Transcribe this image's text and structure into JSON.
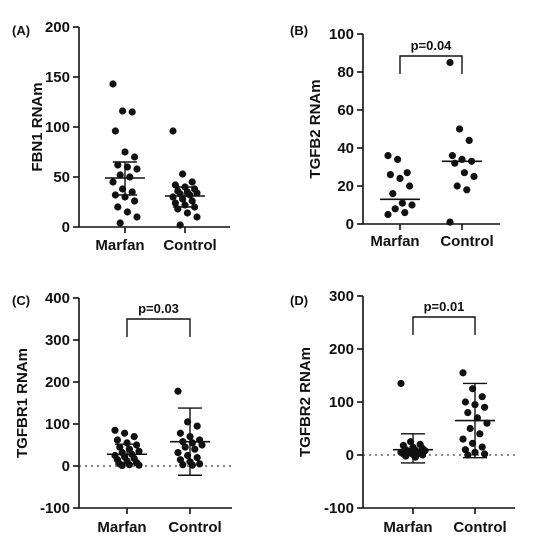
{
  "chart_data": [
    {
      "panel": "(A)",
      "type": "scatter",
      "ylabel": "FBN1  RNAm",
      "ylim": [
        0,
        200
      ],
      "yticks": [
        "0",
        "50",
        "100",
        "150",
        "200"
      ],
      "zero_line": false,
      "categories": [
        "Marfan",
        "Control"
      ],
      "series": [
        {
          "category": "Marfan",
          "mean": 49,
          "sd_low": 32,
          "sd_high": 65,
          "values": [
            143,
            116,
            115,
            96,
            75,
            70,
            62,
            60,
            58,
            52,
            50,
            45,
            38,
            35,
            32,
            30,
            26,
            20,
            15,
            10,
            4
          ]
        },
        {
          "category": "Control",
          "mean": 31,
          "sd_low": 20,
          "sd_high": 40,
          "values": [
            96,
            53,
            45,
            42,
            40,
            38,
            36,
            35,
            34,
            33,
            32,
            30,
            28,
            26,
            24,
            22,
            20,
            18,
            14,
            10,
            2
          ]
        }
      ],
      "significance": null
    },
    {
      "panel": "(B)",
      "type": "scatter",
      "ylabel": "TGFB2 RNAm",
      "ylim": [
        0,
        100
      ],
      "yticks": [
        "0",
        "20",
        "40",
        "60",
        "80",
        "100"
      ],
      "zero_line": false,
      "categories": [
        "Marfan",
        "Control"
      ],
      "series": [
        {
          "category": "Marfan",
          "mean": 13,
          "sd_low": 13,
          "sd_high": 13,
          "values": [
            36,
            34,
            27,
            26,
            24,
            20,
            16,
            11,
            10,
            8,
            6,
            5
          ]
        },
        {
          "category": "Control",
          "mean": 33,
          "sd_low": 33,
          "sd_high": 33,
          "values": [
            85,
            50,
            44,
            36,
            34,
            33,
            32,
            27,
            25,
            20,
            18,
            1
          ]
        }
      ],
      "significance": "p=0.04"
    },
    {
      "panel": "(C)",
      "type": "scatter",
      "ylabel": "TGFBR1  RNAm",
      "ylim": [
        -100,
        400
      ],
      "yticks": [
        "-100",
        "0",
        "100",
        "200",
        "300",
        "400"
      ],
      "zero_line": true,
      "categories": [
        "Marfan",
        "Control"
      ],
      "series": [
        {
          "category": "Marfan",
          "mean": 28,
          "sd_low": 5,
          "sd_high": 52,
          "values": [
            85,
            78,
            70,
            62,
            55,
            50,
            45,
            40,
            35,
            32,
            28,
            25,
            22,
            18,
            15,
            12,
            8,
            5,
            3,
            2,
            1
          ]
        },
        {
          "category": "Control",
          "mean": 58,
          "sd_low": -22,
          "sd_high": 138,
          "values": [
            178,
            105,
            95,
            78,
            70,
            62,
            58,
            55,
            50,
            45,
            40,
            32,
            25,
            20,
            15,
            10,
            5,
            3,
            2
          ]
        }
      ],
      "significance": "p=0.03"
    },
    {
      "panel": "(D)",
      "type": "scatter",
      "ylabel": "TGFBR2 RNAm",
      "ylim": [
        -100,
        300
      ],
      "yticks": [
        "-100",
        "0",
        "100",
        "200",
        "300"
      ],
      "zero_line": true,
      "categories": [
        "Marfan",
        "Control"
      ],
      "series": [
        {
          "category": "Marfan",
          "mean": 10,
          "sd_low": -15,
          "sd_high": 40,
          "values": [
            135,
            25,
            20,
            18,
            15,
            12,
            10,
            9,
            8,
            7,
            6,
            5,
            4,
            3,
            2,
            1,
            0,
            -2,
            -4
          ]
        },
        {
          "category": "Control",
          "mean": 65,
          "sd_low": -5,
          "sd_high": 135,
          "values": [
            155,
            125,
            110,
            100,
            95,
            90,
            80,
            70,
            60,
            50,
            40,
            30,
            22,
            15,
            10,
            5,
            2,
            0
          ]
        }
      ],
      "significance": "p=0.01"
    }
  ]
}
